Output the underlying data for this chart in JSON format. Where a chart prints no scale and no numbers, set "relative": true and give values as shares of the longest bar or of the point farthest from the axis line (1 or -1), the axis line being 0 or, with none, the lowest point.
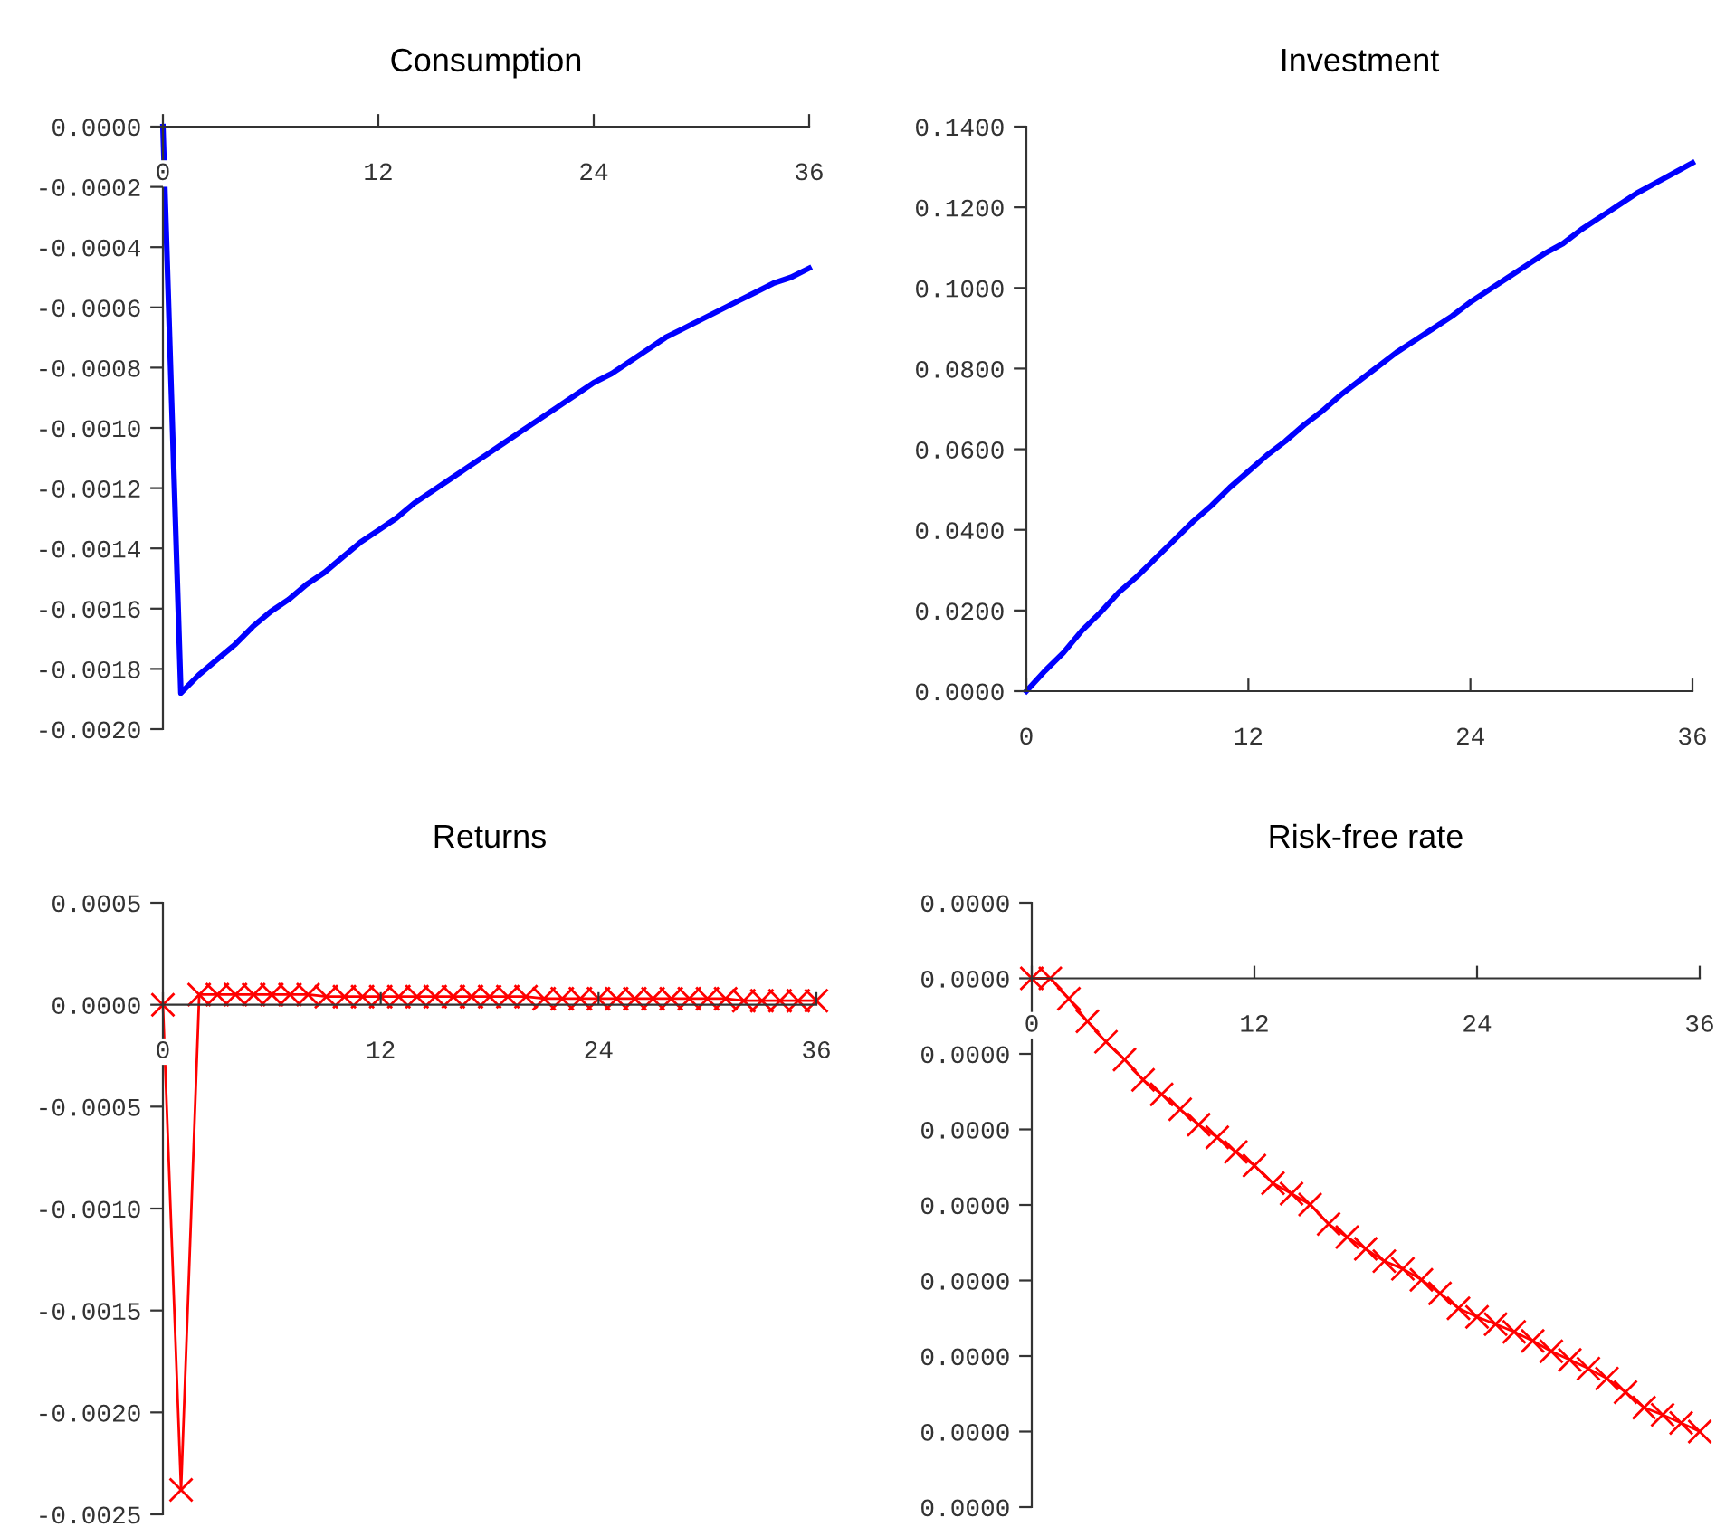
{
  "chart_data": [
    {
      "type": "line",
      "title": "Consumption",
      "color": "#0000ff",
      "marker": "none",
      "line_style": "solid",
      "x": [
        0,
        1,
        2,
        3,
        4,
        5,
        6,
        7,
        8,
        9,
        10,
        11,
        12,
        13,
        14,
        15,
        16,
        17,
        18,
        19,
        20,
        21,
        22,
        23,
        24,
        25,
        26,
        27,
        28,
        29,
        30,
        31,
        32,
        33,
        34,
        35,
        36
      ],
      "values": [
        0,
        -0.00188,
        -0.00182,
        -0.00177,
        -0.00172,
        -0.00166,
        -0.00161,
        -0.00157,
        -0.00152,
        -0.00148,
        -0.00143,
        -0.00138,
        -0.00134,
        -0.0013,
        -0.00125,
        -0.00121,
        -0.00117,
        -0.00113,
        -0.00109,
        -0.00105,
        -0.00101,
        -0.00097,
        -0.00093,
        -0.00089,
        -0.00085,
        -0.00082,
        -0.00078,
        -0.00074,
        -0.0007,
        -0.00067,
        -0.00064,
        -0.00061,
        -0.00058,
        -0.00055,
        -0.00052,
        -0.0005,
        -0.00047
      ],
      "xlim": [
        0,
        36
      ],
      "xticks": [
        0,
        12,
        24,
        36
      ],
      "ylim": [
        -0.002,
        0
      ],
      "yticks": [
        {
          "value": 0,
          "label": "0.0000"
        },
        {
          "value": -0.0002,
          "label": "-0.0002"
        },
        {
          "value": -0.0004,
          "label": "-0.0004"
        },
        {
          "value": -0.0006,
          "label": "-0.0006"
        },
        {
          "value": -0.0008,
          "label": "-0.0008"
        },
        {
          "value": -0.001,
          "label": "-0.0010"
        },
        {
          "value": -0.0012,
          "label": "-0.0012"
        },
        {
          "value": -0.0014,
          "label": "-0.0014"
        },
        {
          "value": -0.0016,
          "label": "-0.0016"
        },
        {
          "value": -0.0018,
          "label": "-0.0018"
        },
        {
          "value": -0.002,
          "label": "-0.0020"
        }
      ]
    },
    {
      "type": "line",
      "title": "Investment",
      "color": "#0000ff",
      "marker": "none",
      "line_style": "solid",
      "x": [
        0,
        1,
        2,
        3,
        4,
        5,
        6,
        7,
        8,
        9,
        10,
        11,
        12,
        13,
        14,
        15,
        16,
        17,
        18,
        19,
        20,
        21,
        22,
        23,
        24,
        25,
        26,
        27,
        28,
        29,
        30,
        31,
        32,
        33,
        34,
        35,
        36
      ],
      "values": [
        0,
        0.005,
        0.0095,
        0.015,
        0.0195,
        0.0245,
        0.0285,
        0.033,
        0.0375,
        0.042,
        0.046,
        0.0505,
        0.0545,
        0.0585,
        0.062,
        0.066,
        0.0695,
        0.0735,
        0.077,
        0.0805,
        0.084,
        0.087,
        0.09,
        0.093,
        0.0965,
        0.0995,
        0.1025,
        0.1055,
        0.1085,
        0.111,
        0.1145,
        0.1175,
        0.1205,
        0.1235,
        0.126,
        0.1285,
        0.131
      ],
      "xlim": [
        0,
        36
      ],
      "xticks": [
        0,
        12,
        24,
        36
      ],
      "ylim": [
        0,
        0.14
      ],
      "yticks": [
        {
          "value": 0,
          "label": "0.0000"
        },
        {
          "value": 0.02,
          "label": "0.0200"
        },
        {
          "value": 0.04,
          "label": "0.0400"
        },
        {
          "value": 0.06,
          "label": "0.0600"
        },
        {
          "value": 0.08,
          "label": "0.0800"
        },
        {
          "value": 0.1,
          "label": "0.1000"
        },
        {
          "value": 0.12,
          "label": "0.1200"
        },
        {
          "value": 0.14,
          "label": "0.1400"
        }
      ]
    },
    {
      "type": "line",
      "title": "Returns",
      "color": "#ff0000",
      "marker": "cross",
      "line_style": "solid",
      "x": [
        0,
        1,
        2,
        3,
        4,
        5,
        6,
        7,
        8,
        9,
        10,
        11,
        12,
        13,
        14,
        15,
        16,
        17,
        18,
        19,
        20,
        21,
        22,
        23,
        24,
        25,
        26,
        27,
        28,
        29,
        30,
        31,
        32,
        33,
        34,
        35,
        36
      ],
      "values": [
        0,
        -0.00238,
        5e-05,
        5e-05,
        5e-05,
        5e-05,
        5e-05,
        5e-05,
        5e-05,
        4e-05,
        4e-05,
        4e-05,
        4e-05,
        4e-05,
        4e-05,
        4e-05,
        4e-05,
        4e-05,
        4e-05,
        4e-05,
        4e-05,
        3e-05,
        3e-05,
        3e-05,
        3e-05,
        3e-05,
        3e-05,
        3e-05,
        3e-05,
        3e-05,
        3e-05,
        3e-05,
        2e-05,
        2e-05,
        2e-05,
        2e-05,
        2e-05
      ],
      "xlim": [
        0,
        36
      ],
      "xticks": [
        0,
        12,
        24,
        36
      ],
      "ylim": [
        -0.0025,
        0.0005
      ],
      "yticks": [
        {
          "value": 0.0005,
          "label": "0.0005"
        },
        {
          "value": 0,
          "label": "0.0000"
        },
        {
          "value": -0.0005,
          "label": "-0.0005"
        },
        {
          "value": -0.001,
          "label": "-0.0010"
        },
        {
          "value": -0.0015,
          "label": "-0.0015"
        },
        {
          "value": -0.002,
          "label": "-0.0020"
        },
        {
          "value": -0.0025,
          "label": "-0.0025"
        }
      ]
    },
    {
      "type": "line",
      "title": "Risk-free rate",
      "color": "#ff0000",
      "marker": "cross",
      "line_style": "solid",
      "relative": true,
      "x": [
        0,
        1,
        2,
        3,
        4,
        5,
        6,
        7,
        8,
        9,
        10,
        11,
        12,
        13,
        14,
        15,
        16,
        17,
        18,
        19,
        20,
        21,
        22,
        23,
        24,
        25,
        26,
        27,
        28,
        29,
        30,
        31,
        32,
        33,
        34,
        35,
        36
      ],
      "values": [
        0,
        0,
        -0.045,
        -0.095,
        -0.14,
        -0.179,
        -0.224,
        -0.256,
        -0.289,
        -0.323,
        -0.351,
        -0.383,
        -0.413,
        -0.452,
        -0.475,
        -0.499,
        -0.542,
        -0.571,
        -0.597,
        -0.624,
        -0.641,
        -0.665,
        -0.695,
        -0.728,
        -0.747,
        -0.763,
        -0.78,
        -0.8,
        -0.823,
        -0.842,
        -0.861,
        -0.883,
        -0.913,
        -0.947,
        -0.963,
        -0.981,
        -1
      ],
      "xlim": [
        0,
        36
      ],
      "xticks": [
        0,
        12,
        24,
        36
      ],
      "annotations": [
        "0.0000",
        "0.0000",
        "0.0000",
        "0.0000",
        "0.0000",
        "0.0000",
        "0.0000",
        "0.0000",
        "0.0000"
      ]
    }
  ]
}
